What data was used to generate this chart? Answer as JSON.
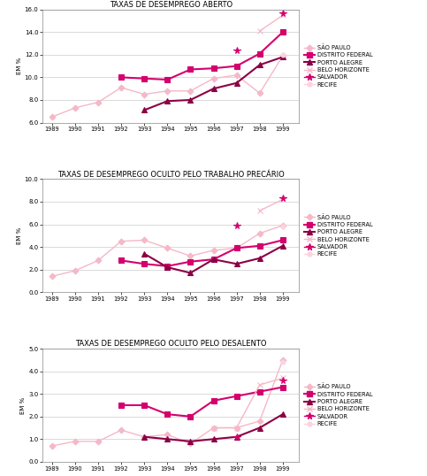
{
  "years": [
    1989,
    1990,
    1991,
    1992,
    1993,
    1994,
    1995,
    1996,
    1997,
    1998,
    1999
  ],
  "chart1_title": "TAXAS DE DESEMPREGO ABERTO",
  "chart1_ylim": [
    6.0,
    16.0
  ],
  "chart1_yticks": [
    6.0,
    8.0,
    10.0,
    12.0,
    14.0,
    16.0
  ],
  "chart1_data": {
    "SAO PAULO": [
      6.5,
      7.3,
      7.8,
      9.1,
      8.5,
      8.8,
      8.8,
      9.9,
      10.2,
      8.6,
      11.9
    ],
    "DISTRITO FEDERAL": [
      null,
      null,
      null,
      10.0,
      9.9,
      9.8,
      10.7,
      10.8,
      11.0,
      12.1,
      14.0
    ],
    "PORTO ALEGRE": [
      null,
      null,
      null,
      null,
      7.1,
      7.9,
      8.0,
      9.0,
      9.5,
      11.1,
      11.8
    ],
    "BELO HORIZONTE": [
      null,
      null,
      null,
      null,
      null,
      null,
      null,
      null,
      null,
      14.1,
      15.5
    ],
    "SALVADOR": [
      null,
      null,
      null,
      null,
      null,
      null,
      null,
      null,
      12.4,
      null,
      15.7
    ],
    "RECIFE": [
      null,
      null,
      null,
      null,
      null,
      null,
      null,
      null,
      null,
      null,
      12.0
    ]
  },
  "chart2_title": "TAXAS DE DESEMPREGO OCULTO PELO TRABALHO PRECÁRIO",
  "chart2_ylim": [
    0.0,
    10.0
  ],
  "chart2_yticks": [
    0.0,
    2.0,
    4.0,
    6.0,
    8.0,
    10.0
  ],
  "chart2_data": {
    "SAO PAULO": [
      1.4,
      1.9,
      2.8,
      4.5,
      4.6,
      3.9,
      3.2,
      3.7,
      3.9,
      5.2,
      5.9
    ],
    "DISTRITO FEDERAL": [
      null,
      null,
      null,
      2.8,
      2.5,
      2.3,
      2.7,
      2.9,
      3.9,
      4.1,
      4.6
    ],
    "PORTO ALEGRE": [
      null,
      null,
      null,
      null,
      3.4,
      2.2,
      1.7,
      2.9,
      2.5,
      3.0,
      4.1
    ],
    "BELO HORIZONTE": [
      null,
      null,
      null,
      null,
      null,
      null,
      null,
      null,
      null,
      7.2,
      8.2
    ],
    "SALVADOR": [
      null,
      null,
      null,
      null,
      null,
      null,
      null,
      null,
      5.9,
      null,
      8.3
    ],
    "RECIFE": [
      null,
      null,
      null,
      null,
      null,
      null,
      null,
      null,
      null,
      null,
      5.8
    ]
  },
  "chart3_title": "TAXAS DE DESEMPREGO OCULTO PELO DESALENTO",
  "chart3_ylim": [
    0.0,
    5.0
  ],
  "chart3_yticks": [
    0.0,
    1.0,
    2.0,
    3.0,
    4.0,
    5.0
  ],
  "chart3_data": {
    "SAO PAULO": [
      0.7,
      0.9,
      0.9,
      1.4,
      1.1,
      1.2,
      0.8,
      1.5,
      1.5,
      1.8,
      4.5
    ],
    "DISTRITO FEDERAL": [
      null,
      null,
      null,
      2.5,
      2.5,
      2.1,
      2.0,
      2.7,
      2.9,
      3.1,
      3.3
    ],
    "PORTO ALEGRE": [
      null,
      null,
      null,
      null,
      1.1,
      1.0,
      0.9,
      1.0,
      1.1,
      1.5,
      2.1
    ],
    "BELO HORIZONTE": [
      null,
      null,
      null,
      null,
      null,
      null,
      null,
      1.5,
      1.5,
      3.4,
      3.7
    ],
    "SALVADOR": [
      null,
      null,
      null,
      null,
      null,
      null,
      null,
      null,
      1.1,
      null,
      3.6
    ],
    "RECIFE": [
      null,
      null,
      null,
      null,
      null,
      null,
      null,
      null,
      null,
      null,
      4.4
    ]
  },
  "series_styles": {
    "SAO PAULO": {
      "color": "#f5b8c8",
      "marker": "D",
      "linewidth": 1.0,
      "markersize": 3.5,
      "linestyle": "-"
    },
    "DISTRITO FEDERAL": {
      "color": "#d4006e",
      "marker": "s",
      "linewidth": 1.5,
      "markersize": 4.5,
      "linestyle": "-"
    },
    "PORTO ALEGRE": {
      "color": "#8b0045",
      "marker": "^",
      "linewidth": 1.5,
      "markersize": 4.5,
      "linestyle": "-"
    },
    "BELO HORIZONTE": {
      "color": "#f5b8c8",
      "marker": "x",
      "linewidth": 1.0,
      "markersize": 4.5,
      "linestyle": "-"
    },
    "SALVADOR": {
      "color": "#d4006e",
      "marker": "*",
      "linewidth": 1.0,
      "markersize": 5.5,
      "linestyle": "-"
    },
    "RECIFE": {
      "color": "#fad4de",
      "marker": "o",
      "linewidth": 1.0,
      "markersize": 3.5,
      "linestyle": "-"
    }
  },
  "legend_labels": [
    "SÃO PAULO",
    "DISTRITO FEDERAL",
    "PORTO ALEGRE",
    "BELO HORIZONTE",
    "SALVADOR",
    "RECIFE"
  ],
  "ylabel": "EM %",
  "background_color": "#ffffff",
  "grid_color": "#cccccc"
}
